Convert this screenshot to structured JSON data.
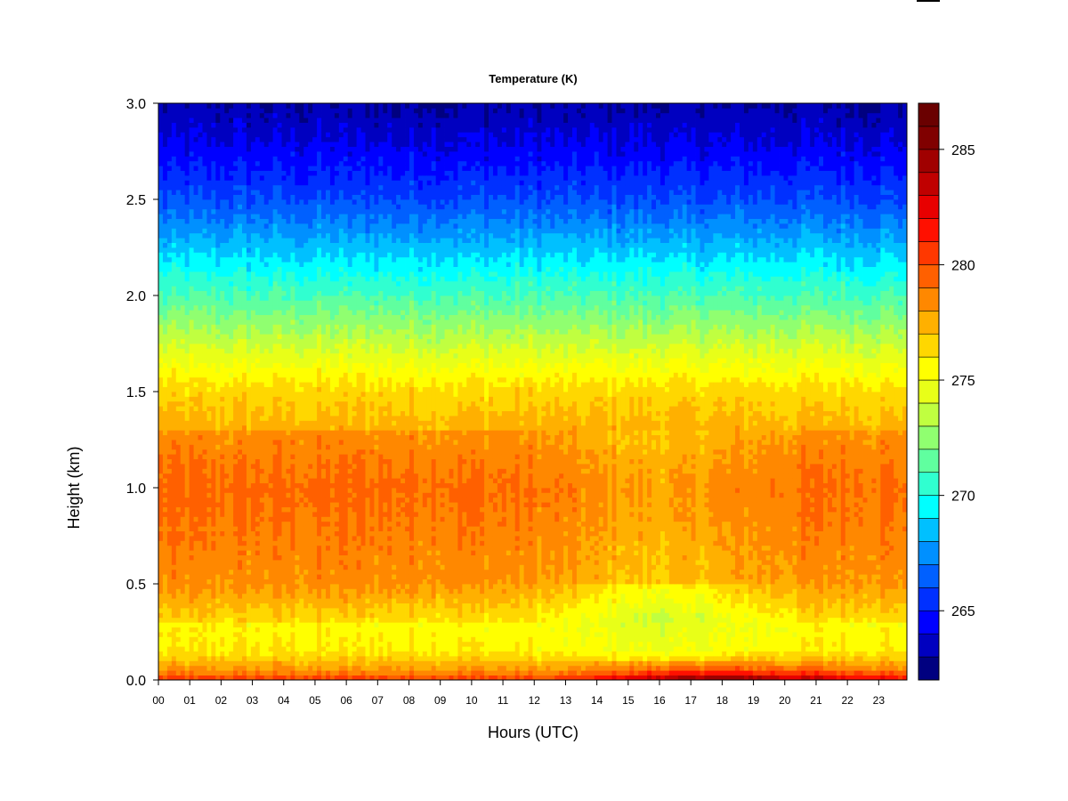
{
  "chart_data": {
    "type": "heatmap",
    "title": "Temperature (K)",
    "xlabel": "Hours (UTC)",
    "ylabel": "Height (km)",
    "x_ticks": [
      "00",
      "01",
      "02",
      "03",
      "04",
      "05",
      "06",
      "07",
      "08",
      "09",
      "10",
      "11",
      "12",
      "13",
      "14",
      "15",
      "16",
      "17",
      "18",
      "19",
      "20",
      "21",
      "22",
      "23"
    ],
    "x_range": [
      0,
      23.9
    ],
    "y_ticks": [
      "0.0",
      "0.5",
      "1.0",
      "1.5",
      "2.0",
      "2.5",
      "3.0"
    ],
    "y_range": [
      0,
      3.0
    ],
    "colorbar": {
      "range": [
        262,
        287
      ],
      "ticks": [
        265,
        270,
        275,
        280,
        285
      ],
      "levels": [
        262,
        263,
        264,
        265,
        266,
        267,
        268,
        269,
        270,
        271,
        272,
        273,
        274,
        275,
        276,
        277,
        278,
        279,
        280,
        281,
        282,
        283,
        284,
        285,
        286,
        287
      ],
      "colors": [
        "#000080",
        "#0000c0",
        "#0000ff",
        "#0030ff",
        "#0060ff",
        "#0090ff",
        "#00c0ff",
        "#00ffff",
        "#30ffd0",
        "#60ff9f",
        "#90ff70",
        "#c0ff40",
        "#e8ff18",
        "#ffff00",
        "#ffd700",
        "#ffb000",
        "#ff8800",
        "#ff6000",
        "#ff3800",
        "#ff1000",
        "#e80000",
        "#c00000",
        "#a00000",
        "#800000",
        "#6a0000"
      ]
    },
    "profiles": [
      {
        "height": 0.0,
        "temperature": 280
      },
      {
        "height": 0.05,
        "temperature": 278
      },
      {
        "height": 0.15,
        "temperature": 276
      },
      {
        "height": 0.3,
        "temperature": 275.5
      },
      {
        "height": 0.5,
        "temperature": 277.5
      },
      {
        "height": 1.0,
        "temperature": 278.5
      },
      {
        "height": 1.3,
        "temperature": 277.5
      },
      {
        "height": 1.5,
        "temperature": 276.5
      },
      {
        "height": 2.0,
        "temperature": 271
      },
      {
        "height": 2.3,
        "temperature": 268
      },
      {
        "height": 2.5,
        "temperature": 266
      },
      {
        "height": 2.8,
        "temperature": 264
      },
      {
        "height": 3.0,
        "temperature": 263
      }
    ],
    "surface_warming": {
      "start_hour": 12.8,
      "peak_hour": 17.5,
      "end_hour": 23.9,
      "peak_temperature": 286
    }
  }
}
